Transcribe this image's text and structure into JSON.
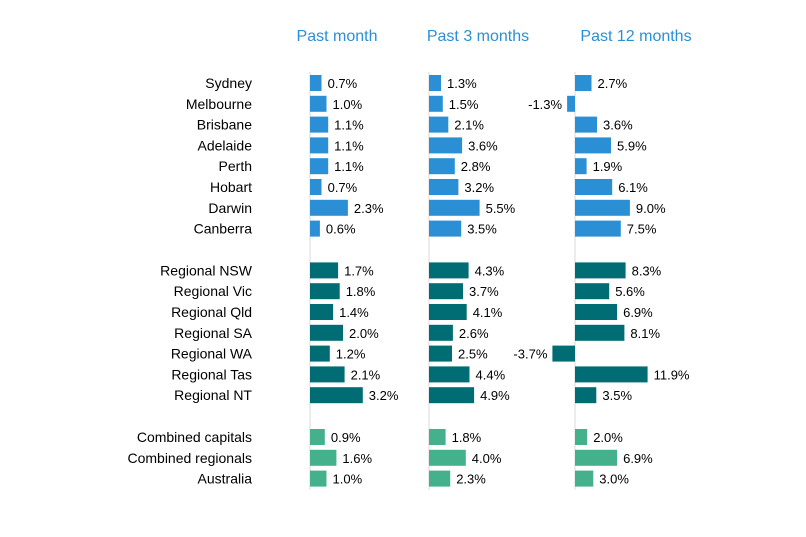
{
  "chart_data": {
    "type": "bar",
    "orientation": "horizontal",
    "panels": [
      "Past month",
      "Past 3 months",
      "Past 12 months"
    ],
    "groups": [
      {
        "color": "#2b8fd6",
        "rows": [
          {
            "label": "Sydney",
            "values": [
              0.7,
              1.3,
              2.7
            ]
          },
          {
            "label": "Melbourne",
            "values": [
              1.0,
              1.5,
              -1.3
            ]
          },
          {
            "label": "Brisbane",
            "values": [
              1.1,
              2.1,
              3.6
            ]
          },
          {
            "label": "Adelaide",
            "values": [
              1.1,
              3.6,
              5.9
            ]
          },
          {
            "label": "Perth",
            "values": [
              1.1,
              2.8,
              1.9
            ]
          },
          {
            "label": "Hobart",
            "values": [
              0.7,
              3.2,
              6.1
            ]
          },
          {
            "label": "Darwin",
            "values": [
              2.3,
              5.5,
              9.0
            ]
          },
          {
            "label": "Canberra",
            "values": [
              0.6,
              3.5,
              7.5
            ]
          }
        ]
      },
      {
        "color": "#006d75",
        "rows": [
          {
            "label": "Regional NSW",
            "values": [
              1.7,
              4.3,
              8.3
            ]
          },
          {
            "label": "Regional Vic",
            "values": [
              1.8,
              3.7,
              5.6
            ]
          },
          {
            "label": "Regional Qld",
            "values": [
              1.4,
              4.1,
              6.9
            ]
          },
          {
            "label": "Regional SA",
            "values": [
              2.0,
              2.6,
              8.1
            ]
          },
          {
            "label": "Regional WA",
            "values": [
              1.2,
              2.5,
              -3.7
            ]
          },
          {
            "label": "Regional Tas",
            "values": [
              2.1,
              4.4,
              11.9
            ]
          },
          {
            "label": "Regional NT",
            "values": [
              3.2,
              4.9,
              3.5
            ]
          }
        ]
      },
      {
        "color": "#45b08c",
        "rows": [
          {
            "label": "Combined capitals",
            "values": [
              0.9,
              1.8,
              2.0
            ]
          },
          {
            "label": "Combined regionals",
            "values": [
              1.6,
              4.0,
              6.9
            ]
          },
          {
            "label": "Australia",
            "values": [
              1.0,
              2.3,
              3.0
            ]
          }
        ]
      }
    ],
    "value_format": "percent_1dp"
  }
}
